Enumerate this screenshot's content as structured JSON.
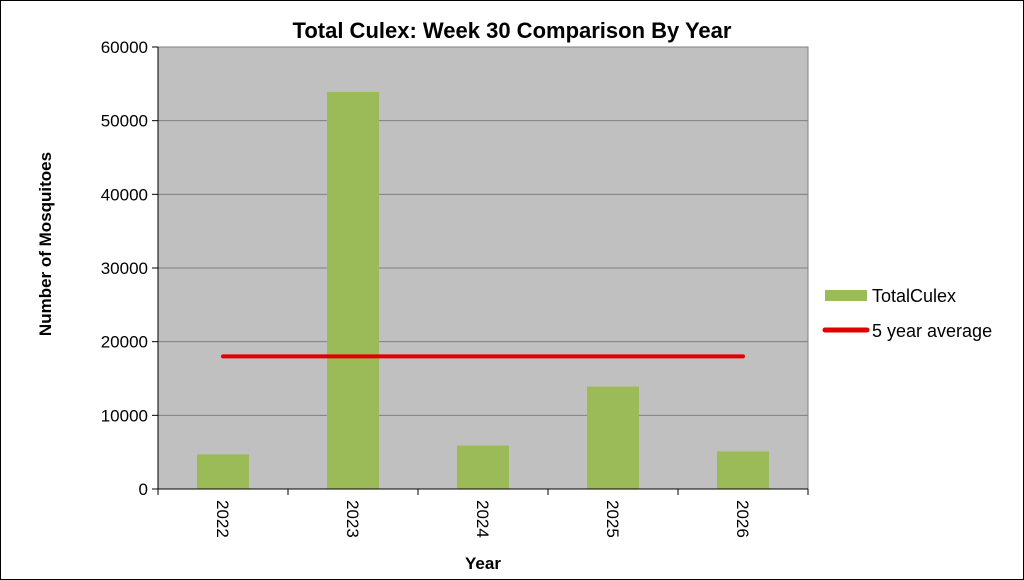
{
  "chart_data": {
    "type": "bar",
    "title": "Total Culex: Week 30 Comparison By Year",
    "xlabel": "Year",
    "ylabel": "Number of Mosquitoes",
    "categories": [
      "2022",
      "2023",
      "2024",
      "2025",
      "2026"
    ],
    "series": [
      {
        "name": "TotalCulex",
        "type": "bar",
        "color": "#9bbb59",
        "values": [
          4700,
          53900,
          5900,
          13900,
          5100
        ]
      },
      {
        "name": "5 year average",
        "type": "line",
        "color": "#e00000",
        "values": [
          18000,
          18000,
          18000,
          18000,
          18000
        ]
      }
    ],
    "ylim": [
      0,
      60000
    ],
    "yticks": [
      "0",
      "10000",
      "20000",
      "30000",
      "40000",
      "50000",
      "60000"
    ],
    "grid": true,
    "plot_background": "#c0c0c0",
    "legend_position": "right"
  }
}
